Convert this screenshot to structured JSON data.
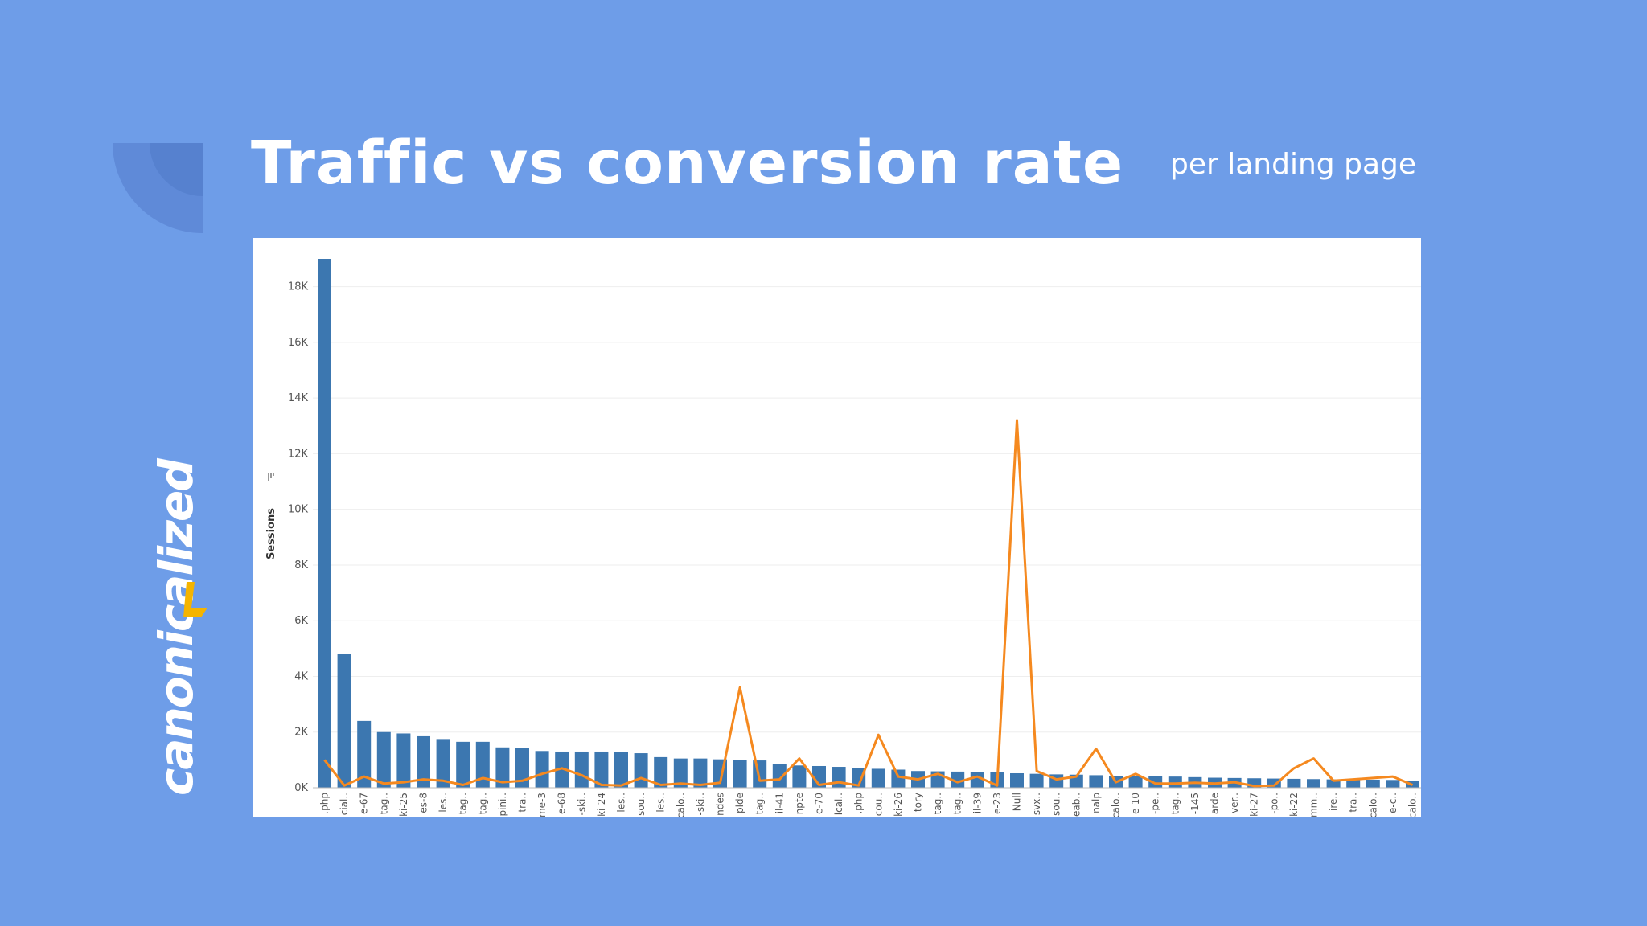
{
  "slide": {
    "title": "Traffic vs conversion rate",
    "subtitle": "per landing page",
    "logo_text": "canonicalized",
    "colors": {
      "background": "#6e9de8",
      "bar": "#3c77b0",
      "line": "#f5891f",
      "logo_accent": "#f5b400"
    }
  },
  "chart_data": {
    "type": "bar",
    "ylabel": "Sessions",
    "ylim": [
      0,
      19000
    ],
    "yticks": [
      "0K",
      "2K",
      "4K",
      "6K",
      "8K",
      "10K",
      "12K",
      "14K",
      "16K",
      "18K"
    ],
    "grid": true,
    "categories": [
      ".php",
      "cial..",
      "e-67",
      "tag..",
      "ki-25",
      "es-8",
      "les..",
      "tag..",
      "tag..",
      "pini..",
      "tra..",
      "me-3",
      "e-68",
      "-ski..",
      "ki-24",
      "les..",
      "sou..",
      "les..",
      "calo..",
      "-ski..",
      "ndes",
      "pide",
      "tag..",
      "il-41",
      "npte",
      "e-70",
      "ical..",
      ".php",
      "cou..",
      "ki-26",
      "tory",
      "tag..",
      "tag..",
      "il-39",
      "e-23",
      "Null",
      "svx..",
      "sou..",
      "eab..",
      "nalp",
      "calo..",
      "e-10",
      "-pe..",
      "tag..",
      "-145",
      "arde",
      "ver..",
      "ki-27",
      "-po..",
      "ki-22",
      "mm..",
      "ire..",
      "tra..",
      "calo..",
      "e-c..",
      "calo.."
    ],
    "series": [
      {
        "type": "bar",
        "values": [
          19000,
          4800,
          2400,
          2000,
          1950,
          1850,
          1750,
          1650,
          1650,
          1450,
          1420,
          1320,
          1300,
          1300,
          1300,
          1280,
          1240,
          1100,
          1050,
          1050,
          1020,
          1000,
          980,
          850,
          800,
          780,
          750,
          720,
          680,
          650,
          600,
          590,
          580,
          570,
          560,
          520,
          500,
          480,
          470,
          450,
          430,
          420,
          410,
          400,
          380,
          360,
          350,
          340,
          330,
          320,
          310,
          300,
          300,
          290,
          280,
          260
        ]
      },
      {
        "type": "line",
        "values": [
          1000,
          80,
          400,
          150,
          200,
          300,
          250,
          100,
          350,
          200,
          250,
          500,
          700,
          450,
          100,
          80,
          350,
          100,
          150,
          100,
          180,
          3600,
          250,
          300,
          1050,
          100,
          200,
          80,
          1900,
          400,
          300,
          500,
          200,
          400,
          80,
          13200,
          600,
          300,
          400,
          1400,
          200,
          500,
          150,
          150,
          180,
          150,
          200,
          60,
          80,
          700,
          1050,
          250,
          300,
          350,
          400,
          100
        ]
      }
    ]
  }
}
